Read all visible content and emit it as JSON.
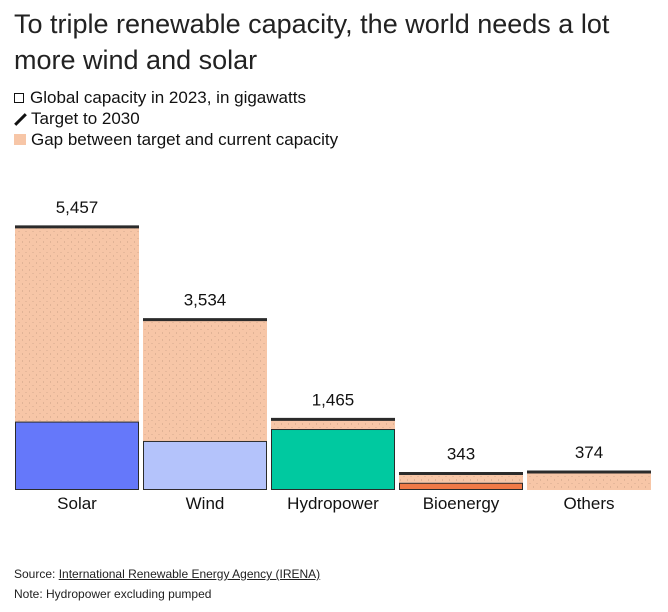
{
  "title": "To triple renewable capacity, the world needs a lot more wind and solar",
  "legend": {
    "capacity": "Global capacity in 2023, in gigawatts",
    "target": "Target to 2030",
    "gap": "Gap between target and current capacity"
  },
  "chart_data": {
    "type": "bar",
    "categories": [
      "Solar",
      "Wind",
      "Hydropower",
      "Bioenergy",
      "Others"
    ],
    "series": [
      {
        "name": "Global capacity in 2023, in gigawatts",
        "values": [
          1419,
          1017,
          1265,
          150,
          0
        ]
      },
      {
        "name": "Target to 2030",
        "values": [
          5457,
          3534,
          1465,
          343,
          374
        ]
      }
    ],
    "data_labels": [
      "5,457",
      "3,534",
      "1,465",
      "343",
      "374"
    ],
    "colors": {
      "capacity": [
        "#6578fa",
        "#b4c3fb",
        "#00c9a0",
        "#f07a47",
        "#c0c0c0"
      ],
      "gap": "#f7c6a7",
      "target_line": "#2b2b2b"
    },
    "ylim": [
      0,
      5600
    ],
    "xlabel": "",
    "ylabel": ""
  },
  "footer": {
    "source_prefix": "Source: ",
    "source_link": "International Renewable Energy Agency (IRENA)",
    "note": "Note: Hydropower excluding pumped"
  }
}
